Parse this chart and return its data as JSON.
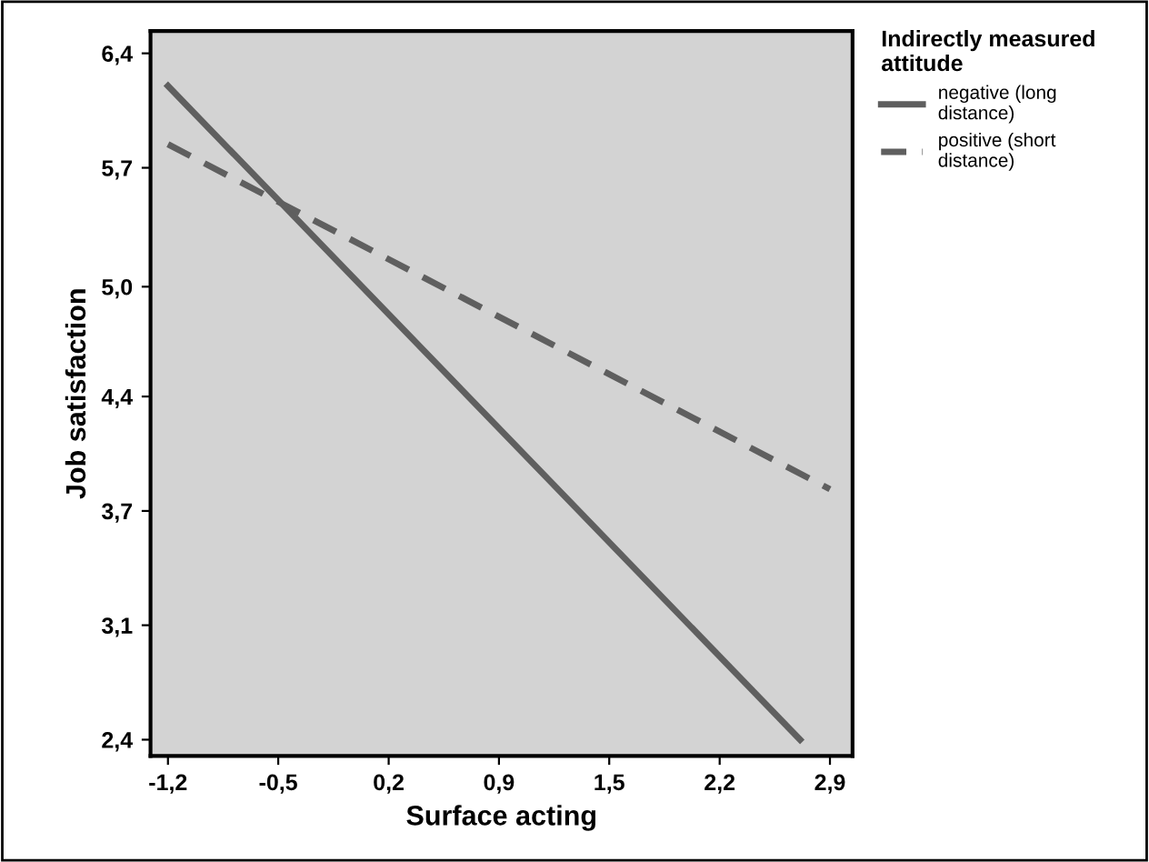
{
  "chart_data": {
    "type": "line",
    "xlabel": "Surface acting",
    "ylabel": "Job satisfaction",
    "legend_title": "Indirectly measured attitude",
    "legend": "top right",
    "xlim": [
      -1.308,
      3.04
    ],
    "ylim": [
      2.305,
      6.53
    ],
    "xticks": [
      {
        "value": -1.2,
        "label": "-1,2"
      },
      {
        "value": -0.517,
        "label": "-0,5"
      },
      {
        "value": 0.167,
        "label": "0,2"
      },
      {
        "value": 0.85,
        "label": "0,9"
      },
      {
        "value": 1.533,
        "label": "1,5"
      },
      {
        "value": 2.217,
        "label": "2,2"
      },
      {
        "value": 2.9,
        "label": "2,9"
      }
    ],
    "yticks": [
      {
        "value": 2.4,
        "label": "2,4"
      },
      {
        "value": 3.067,
        "label": "3,1"
      },
      {
        "value": 3.733,
        "label": "3,7"
      },
      {
        "value": 4.4,
        "label": "4,4"
      },
      {
        "value": 5.04,
        "label": "5,0"
      },
      {
        "value": 5.733,
        "label": "5,7"
      },
      {
        "value": 6.4,
        "label": "6,4"
      }
    ],
    "grid": false,
    "series": [
      {
        "name": "negative (long distance)",
        "color": "#5f5f5f",
        "line_style": "solid",
        "x": [
          -1.2,
          2.715
        ],
        "values": [
          6.21,
          2.4
        ]
      },
      {
        "name": "positive (short distance)",
        "color": "#5f5f5f",
        "line_style": "dashed",
        "x": [
          -1.2,
          2.9
        ],
        "values": [
          5.87,
          3.86
        ]
      }
    ]
  }
}
